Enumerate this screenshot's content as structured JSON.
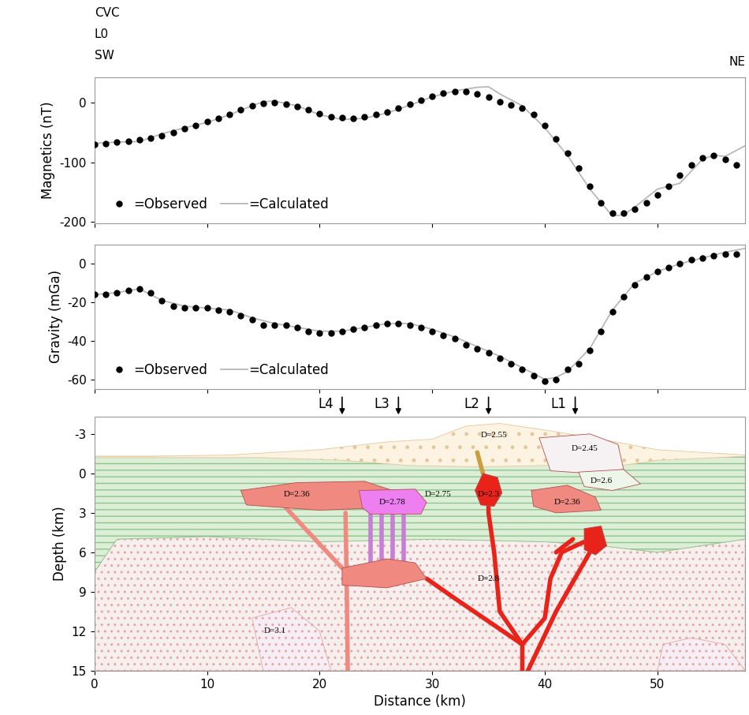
{
  "header": {
    "lines": [
      "CVC",
      "L0",
      "SW"
    ],
    "right": "NE"
  },
  "chart_data": [
    {
      "type": "line",
      "y_label": "Magnetics (nT)",
      "xlim": [
        0,
        57.8
      ],
      "ylim": [
        -202,
        43
      ],
      "xticks": [
        0,
        10,
        20,
        30,
        40,
        50
      ],
      "yticks": [
        -200,
        -100,
        0
      ],
      "tick_labels": "y",
      "legend": "lower left",
      "series": [
        {
          "name": "=Observed",
          "type": "scatter",
          "marker": "o",
          "color": "#000000",
          "x": [
            0,
            1,
            2,
            3,
            4,
            5,
            6,
            7,
            8,
            9,
            10,
            11,
            12,
            13,
            14,
            15,
            16,
            17,
            18,
            19,
            20,
            21,
            22,
            23,
            24,
            25,
            26,
            27,
            28,
            29,
            30,
            31,
            32,
            33,
            34,
            35,
            36,
            37,
            38,
            39,
            40,
            41,
            42,
            43,
            44,
            45,
            46,
            47,
            48,
            49,
            50,
            51,
            52,
            53,
            54,
            55,
            56,
            57
          ],
          "values": [
            -70,
            -68,
            -66,
            -64,
            -62,
            -59,
            -55,
            -50,
            -44,
            -38,
            -32,
            -26,
            -19,
            -12,
            -5,
            -1,
            0,
            -2,
            -6,
            -12,
            -18,
            -23,
            -25,
            -26,
            -24,
            -20,
            -15,
            -9,
            -2,
            5,
            11,
            16,
            19,
            19,
            15,
            9,
            2,
            -3,
            -9,
            -20,
            -38,
            -60,
            -85,
            -110,
            -140,
            -168,
            -185,
            -185,
            -178,
            -168,
            -155,
            -140,
            -122,
            -105,
            -92,
            -88,
            -95,
            -105
          ]
        },
        {
          "name": "=Calculated",
          "type": "line",
          "color": "#b8b8b8",
          "x": [
            0,
            2,
            4,
            6,
            8,
            10,
            12,
            14,
            15,
            16,
            18,
            20,
            22,
            24,
            26,
            28,
            30,
            32,
            34,
            35,
            36,
            38,
            40,
            42,
            44,
            46,
            47,
            48,
            50,
            52,
            54,
            55,
            56,
            57.8
          ],
          "values": [
            -68,
            -66,
            -65,
            -52,
            -42,
            -33,
            -20,
            -5,
            2,
            3,
            -5,
            -20,
            -28,
            -26,
            -17,
            -4,
            10,
            20,
            26,
            27,
            15,
            -5,
            -42,
            -88,
            -145,
            -190,
            -188,
            -175,
            -145,
            -135,
            -95,
            -88,
            -90,
            -72
          ]
        }
      ]
    },
    {
      "type": "line",
      "y_label": "Gravity (mGa)",
      "xlim": [
        0,
        57.8
      ],
      "ylim": [
        -65,
        10
      ],
      "xticks": [
        0,
        10,
        20,
        30,
        40,
        50
      ],
      "yticks": [
        -60,
        -40,
        -20,
        0
      ],
      "tick_labels": "y",
      "legend": "lower left",
      "series": [
        {
          "name": "=Observed",
          "type": "scatter",
          "marker": "o",
          "color": "#000000",
          "x": [
            0,
            1,
            2,
            3,
            4,
            5,
            6,
            7,
            8,
            9,
            10,
            11,
            12,
            13,
            14,
            15,
            16,
            17,
            18,
            19,
            20,
            21,
            22,
            23,
            24,
            25,
            26,
            27,
            28,
            29,
            30,
            31,
            32,
            33,
            34,
            35,
            36,
            37,
            38,
            39,
            40,
            41,
            42,
            43,
            44,
            45,
            46,
            47,
            48,
            49,
            50,
            51,
            52,
            53,
            54,
            55,
            56,
            57
          ],
          "values": [
            -16,
            -16,
            -15,
            -14,
            -13,
            -15,
            -19,
            -22,
            -23,
            -23,
            -23,
            -24,
            -25,
            -27,
            -29,
            -32,
            -32,
            -32,
            -33,
            -35,
            -36,
            -36,
            -35,
            -34,
            -33,
            -32,
            -31,
            -31,
            -32,
            -33,
            -35,
            -37,
            -39,
            -42,
            -44,
            -46,
            -49,
            -52,
            -55,
            -58,
            -61,
            -60,
            -55,
            -52,
            -45,
            -35,
            -25,
            -17,
            -11,
            -7,
            -4,
            -2,
            0,
            2,
            3,
            4,
            5,
            5
          ]
        },
        {
          "name": "=Calculated",
          "type": "line",
          "color": "#b8b8b8",
          "x": [
            0,
            2,
            4,
            6,
            8,
            10,
            12,
            14,
            16,
            18,
            20,
            22,
            24,
            26,
            28,
            30,
            32,
            34,
            36,
            38,
            40,
            41,
            42,
            44,
            46,
            48,
            50,
            52,
            54,
            56,
            57.8
          ],
          "values": [
            -16,
            -15,
            -13,
            -19,
            -22,
            -23,
            -24,
            -28,
            -31,
            -33,
            -35,
            -35,
            -33,
            -31,
            -31,
            -34,
            -38,
            -43,
            -48,
            -54,
            -60,
            -59,
            -56,
            -44,
            -24,
            -10,
            -4,
            0,
            3,
            6,
            8
          ]
        }
      ]
    },
    {
      "type": "section",
      "x_label": "Distance (km)",
      "y_label": "Depth (km)",
      "xlim": [
        0,
        57.8
      ],
      "ylim": [
        15,
        -4.3
      ],
      "xticks": [
        0,
        10,
        20,
        30,
        40,
        50
      ],
      "yticks": [
        -3,
        0,
        3,
        6,
        9,
        12,
        15
      ],
      "profiles": [
        {
          "name": "L4",
          "x": 22
        },
        {
          "name": "L3",
          "x": 27
        },
        {
          "name": "L2",
          "x": 35
        },
        {
          "name": "L1",
          "x": 42.7
        }
      ],
      "polygons": [
        {
          "type": "basement",
          "label": "D=2.8",
          "color": "#f7eeee",
          "points": [
            [
              0,
              15
            ],
            [
              0,
              7.5
            ],
            [
              2,
              5
            ],
            [
              10,
              4.8
            ],
            [
              20,
              5.2
            ],
            [
              30,
              5
            ],
            [
              40,
              5.2
            ],
            [
              45,
              5.5
            ],
            [
              50,
              6
            ],
            [
              57.8,
              5
            ],
            [
              57.8,
              15
            ]
          ]
        },
        {
          "type": "layer",
          "label": "D=2.75",
          "color": "#dcefd6",
          "points": [
            [
              0,
              -1.3
            ],
            [
              57.8,
              -1.3
            ],
            [
              57.8,
              5
            ],
            [
              50,
              6
            ],
            [
              45,
              5.5
            ],
            [
              40,
              5.2
            ],
            [
              30,
              5
            ],
            [
              20,
              5.2
            ],
            [
              10,
              4.8
            ],
            [
              2,
              5
            ],
            [
              0,
              7.5
            ]
          ]
        },
        {
          "type": "sediment",
          "label": "D=2.55",
          "color": "#fcf3e2",
          "points": [
            [
              0,
              -1.3
            ],
            [
              5,
              -1.3
            ],
            [
              12,
              -1.4
            ],
            [
              20,
              -1.8
            ],
            [
              26,
              -2.4
            ],
            [
              30,
              -2.6
            ],
            [
              33,
              -3.6
            ],
            [
              36,
              -3.8
            ],
            [
              40,
              -3.3
            ],
            [
              45,
              -2.6
            ],
            [
              50,
              -1.8
            ],
            [
              57.8,
              -1.4
            ],
            [
              57.8,
              -1.3
            ],
            [
              50,
              -1.0
            ],
            [
              46,
              -0.5
            ],
            [
              40,
              -0.6
            ],
            [
              34,
              -0.5
            ],
            [
              28,
              -0.6
            ],
            [
              22,
              -1.0
            ],
            [
              15,
              -1.2
            ],
            [
              0,
              -1.2
            ]
          ]
        },
        {
          "type": "basement",
          "label": "D=3.1",
          "color": "#f6eef4",
          "points": [
            [
              15,
              15
            ],
            [
              14,
              11
            ],
            [
              17.5,
              10.2
            ],
            [
              20,
              12
            ],
            [
              21,
              15
            ]
          ]
        },
        {
          "type": "basement",
          "color": "#f6eef4",
          "points": [
            [
              50,
              15
            ],
            [
              50.5,
              13
            ],
            [
              53,
              12.5
            ],
            [
              56,
              13
            ],
            [
              57.8,
              15
            ]
          ]
        },
        {
          "type": "body",
          "label": "D=2.45",
          "color": "#f6f1f3",
          "points": [
            [
              39.5,
              -2.7
            ],
            [
              44,
              -3.0
            ],
            [
              46.5,
              -2.2
            ],
            [
              47,
              -0.3
            ],
            [
              44,
              0
            ],
            [
              40.5,
              -0.2
            ]
          ]
        },
        {
          "type": "body",
          "label": "D=2.6",
          "color": "#eef6ea",
          "points": [
            [
              43,
              -0.1
            ],
            [
              47,
              -0.3
            ],
            [
              48.5,
              0.8
            ],
            [
              46,
              1.3
            ],
            [
              43.5,
              1.0
            ]
          ]
        },
        {
          "type": "body",
          "label": "D=2.36",
          "color": "#f08a80",
          "points": [
            [
              13,
              1.3
            ],
            [
              18,
              0.7
            ],
            [
              24,
              0.6
            ],
            [
              26.5,
              1.3
            ],
            [
              26,
              2.6
            ],
            [
              20,
              2.8
            ],
            [
              13.5,
              2.4
            ]
          ]
        },
        {
          "type": "body",
          "label": "D=2.78",
          "color": "#ee7ff0",
          "points": [
            [
              23.5,
              1.3
            ],
            [
              28.5,
              1.2
            ],
            [
              29.5,
              2.2
            ],
            [
              29,
              3.1
            ],
            [
              24.5,
              3.1
            ],
            [
              23.8,
              2.6
            ]
          ]
        },
        {
          "type": "body",
          "label": "D=2.36",
          "color": "#f08a80",
          "points": [
            [
              38.8,
              1.3
            ],
            [
              42,
              0.9
            ],
            [
              44.5,
              1.8
            ],
            [
              45,
              2.8
            ],
            [
              41,
              3.0
            ],
            [
              39,
              2.5
            ]
          ]
        },
        {
          "type": "body",
          "color": "#f08a80",
          "points": [
            [
              22,
              7.2
            ],
            [
              26,
              6.5
            ],
            [
              28.5,
              6.8
            ],
            [
              29.5,
              8
            ],
            [
              26,
              8.7
            ],
            [
              22,
              8.5
            ]
          ]
        },
        {
          "type": "body",
          "label": "D=2.3",
          "color": "#e8231a",
          "points": [
            [
              34.5,
              0
            ],
            [
              35.8,
              0.3
            ],
            [
              36.2,
              1.5
            ],
            [
              35.5,
              2.5
            ],
            [
              34.3,
              2.4
            ],
            [
              33.8,
              1.3
            ]
          ]
        },
        {
          "type": "body",
          "color": "#e8231a",
          "points": [
            [
              43.5,
              4.2
            ],
            [
              45,
              4.0
            ],
            [
              45.5,
              5.5
            ],
            [
              44.5,
              6.2
            ],
            [
              43.5,
              5.8
            ]
          ]
        }
      ],
      "dykes": [
        {
          "color": "#e8231a",
          "points": [
            [
              38,
              15
            ],
            [
              38,
              13
            ],
            [
              36,
              10.5
            ],
            [
              35.5,
              6
            ],
            [
              35,
              3
            ],
            [
              35,
              2.4
            ]
          ]
        },
        {
          "color": "#e8231a",
          "points": [
            [
              38,
              13
            ],
            [
              32,
              9.5
            ],
            [
              29.5,
              8
            ]
          ]
        },
        {
          "color": "#e8231a",
          "points": [
            [
              38,
              13
            ],
            [
              40,
              11
            ],
            [
              40.5,
              8
            ],
            [
              41.5,
              6
            ],
            [
              43.5,
              5.2
            ]
          ]
        },
        {
          "color": "#e8231a",
          "points": [
            [
              38.5,
              15
            ],
            [
              41,
              10.5
            ],
            [
              44,
              6
            ]
          ]
        },
        {
          "color": "#e8231a",
          "points": [
            [
              41,
              6
            ],
            [
              42.5,
              5
            ]
          ]
        },
        {
          "color": "#f08a80",
          "points": [
            [
              22.5,
              15
            ],
            [
              22.4,
              8
            ],
            [
              22.3,
              3
            ]
          ]
        },
        {
          "color": "#f08a80",
          "points": [
            [
              17,
              2.6
            ],
            [
              18.5,
              4
            ],
            [
              22,
              7.2
            ]
          ]
        },
        {
          "color": "#c77fd6",
          "points": [
            [
              24.5,
              3.1
            ],
            [
              24.5,
              6.8
            ]
          ]
        },
        {
          "color": "#c77fd6",
          "points": [
            [
              25.5,
              3.1
            ],
            [
              25.5,
              6.6
            ]
          ]
        },
        {
          "color": "#c77fd6",
          "points": [
            [
              26.5,
              3.1
            ],
            [
              26.5,
              6.6
            ]
          ]
        },
        {
          "color": "#c77fd6",
          "points": [
            [
              27.5,
              3.1
            ],
            [
              27.5,
              6.7
            ]
          ]
        },
        {
          "color": "#c8a040",
          "points": [
            [
              34.5,
              0
            ],
            [
              34,
              -1.6
            ]
          ]
        }
      ]
    }
  ]
}
